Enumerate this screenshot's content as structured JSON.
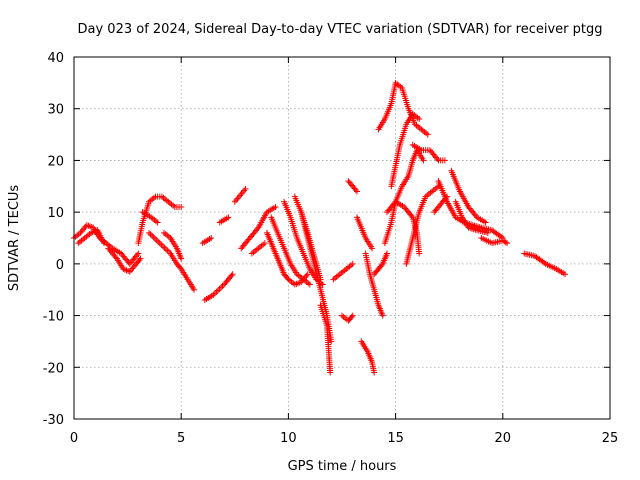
{
  "chart_data": {
    "type": "scatter",
    "title": "Day 023 of 2024, Sidereal Day-to-day VTEC variation (SDTVAR) for receiver ptgg",
    "xlabel": "GPS time / hours",
    "ylabel": "SDTVAR / TECUs",
    "xlim": [
      0,
      25
    ],
    "ylim": [
      -30,
      40
    ],
    "xticks": [
      0,
      5,
      10,
      15,
      20,
      25
    ],
    "yticks": [
      -30,
      -20,
      -10,
      0,
      10,
      20,
      30,
      40
    ],
    "xtick_labels": [
      "0",
      "5",
      "10",
      "15",
      "20",
      "25"
    ],
    "ytick_labels": [
      "-30",
      "-20",
      "-10",
      "0",
      "10",
      "20",
      "30",
      "40"
    ],
    "grid": true,
    "marker": "plus",
    "series": [
      {
        "name": "SDTVAR",
        "color": "#ff0000",
        "traces": [
          [
            [
              0.0,
              5
            ],
            [
              0.3,
              6
            ],
            [
              0.6,
              7.5
            ],
            [
              0.9,
              7
            ],
            [
              1.2,
              5
            ],
            [
              1.5,
              4
            ],
            [
              1.8,
              3
            ],
            [
              2.2,
              2
            ],
            [
              2.6,
              0
            ],
            [
              3.0,
              2
            ]
          ],
          [
            [
              0.2,
              4
            ],
            [
              0.5,
              5
            ],
            [
              0.8,
              6
            ],
            [
              1.1,
              6.5
            ],
            [
              1.4,
              4
            ]
          ],
          [
            [
              1.6,
              3
            ],
            [
              2.0,
              1
            ],
            [
              2.3,
              -1
            ],
            [
              2.6,
              -1.5
            ],
            [
              2.9,
              0
            ],
            [
              3.1,
              1
            ]
          ],
          [
            [
              3.0,
              4
            ],
            [
              3.2,
              8
            ],
            [
              3.5,
              12
            ],
            [
              3.8,
              13
            ],
            [
              4.1,
              13
            ],
            [
              4.4,
              12
            ],
            [
              4.7,
              11
            ],
            [
              5.0,
              11
            ]
          ],
          [
            [
              3.2,
              10
            ],
            [
              3.6,
              9
            ],
            [
              3.9,
              8
            ]
          ],
          [
            [
              3.5,
              6
            ],
            [
              4.0,
              4
            ],
            [
              4.5,
              2
            ],
            [
              4.8,
              0
            ],
            [
              5.0,
              -1
            ],
            [
              5.3,
              -3
            ],
            [
              5.6,
              -5
            ]
          ],
          [
            [
              4.2,
              6
            ],
            [
              4.5,
              5
            ],
            [
              4.8,
              3
            ],
            [
              5.0,
              1
            ]
          ],
          [
            [
              6.1,
              -7
            ],
            [
              6.5,
              -6
            ],
            [
              7.0,
              -4
            ],
            [
              7.4,
              -2
            ]
          ],
          [
            [
              6.0,
              4
            ],
            [
              6.4,
              5
            ]
          ],
          [
            [
              6.8,
              8
            ],
            [
              7.2,
              9
            ]
          ],
          [
            [
              7.5,
              12
            ],
            [
              8.0,
              14.5
            ]
          ],
          [
            [
              7.8,
              3
            ],
            [
              8.2,
              5
            ],
            [
              8.6,
              7
            ],
            [
              9.0,
              10
            ],
            [
              9.4,
              11
            ]
          ],
          [
            [
              8.3,
              2
            ],
            [
              8.6,
              3
            ],
            [
              8.9,
              4
            ]
          ],
          [
            [
              9.0,
              6
            ],
            [
              9.2,
              4
            ],
            [
              9.4,
              2
            ],
            [
              9.6,
              0
            ],
            [
              9.8,
              -2
            ],
            [
              10.0,
              -3
            ],
            [
              10.3,
              -4
            ],
            [
              10.6,
              -3.5
            ],
            [
              10.9,
              -2
            ]
          ],
          [
            [
              9.2,
              9
            ],
            [
              9.5,
              6
            ],
            [
              9.8,
              3
            ],
            [
              10.1,
              0
            ],
            [
              10.4,
              -2
            ],
            [
              10.7,
              -3
            ],
            [
              11.0,
              -4
            ]
          ],
          [
            [
              9.8,
              12
            ],
            [
              10.1,
              9
            ],
            [
              10.4,
              5
            ],
            [
              10.7,
              2
            ],
            [
              11.0,
              -1
            ],
            [
              11.3,
              -3
            ],
            [
              11.6,
              -4
            ]
          ],
          [
            [
              10.3,
              13
            ],
            [
              10.6,
              10
            ],
            [
              10.9,
              5
            ],
            [
              11.2,
              0
            ],
            [
              11.5,
              -5
            ],
            [
              11.8,
              -10
            ],
            [
              12.0,
              -15
            ]
          ],
          [
            [
              10.6,
              10
            ],
            [
              10.9,
              6
            ],
            [
              11.1,
              3
            ],
            [
              11.3,
              0
            ],
            [
              11.5,
              -3
            ]
          ],
          [
            [
              11.5,
              -8
            ],
            [
              11.8,
              -12
            ],
            [
              11.9,
              -18
            ],
            [
              11.95,
              -21
            ]
          ],
          [
            [
              12.1,
              -3
            ],
            [
              12.4,
              -2
            ],
            [
              12.7,
              -1
            ],
            [
              13.0,
              0
            ]
          ],
          [
            [
              12.5,
              -10
            ],
            [
              12.8,
              -11
            ],
            [
              13.0,
              -10
            ]
          ],
          [
            [
              12.8,
              16
            ],
            [
              13.2,
              14
            ]
          ],
          [
            [
              13.2,
              9
            ],
            [
              13.6,
              5
            ],
            [
              13.9,
              3
            ]
          ],
          [
            [
              13.4,
              -15
            ],
            [
              13.7,
              -17
            ],
            [
              13.9,
              -19
            ],
            [
              14.0,
              -21
            ]
          ],
          [
            [
              13.6,
              2
            ],
            [
              13.8,
              -2
            ],
            [
              14.0,
              -5
            ],
            [
              14.2,
              -8
            ],
            [
              14.4,
              -10
            ]
          ],
          [
            [
              14.0,
              -2
            ],
            [
              14.2,
              -1
            ],
            [
              14.4,
              0
            ],
            [
              14.6,
              2
            ]
          ],
          [
            [
              14.2,
              26
            ],
            [
              14.5,
              28
            ],
            [
              14.8,
              31
            ],
            [
              15.0,
              35
            ],
            [
              15.3,
              34
            ],
            [
              15.6,
              30
            ],
            [
              15.9,
              27
            ],
            [
              16.2,
              26
            ],
            [
              16.5,
              25
            ]
          ],
          [
            [
              14.5,
              4
            ],
            [
              14.8,
              8
            ],
            [
              15.0,
              12
            ],
            [
              15.3,
              15
            ],
            [
              15.6,
              17
            ],
            [
              15.8,
              20
            ],
            [
              16.0,
              22
            ],
            [
              16.3,
              20
            ]
          ],
          [
            [
              14.6,
              10
            ],
            [
              15.0,
              12
            ],
            [
              15.4,
              11
            ],
            [
              15.8,
              9
            ],
            [
              16.0,
              6
            ],
            [
              16.1,
              2
            ]
          ],
          [
            [
              14.8,
              15
            ],
            [
              15.0,
              19
            ],
            [
              15.2,
              23
            ],
            [
              15.5,
              27
            ],
            [
              15.8,
              29
            ],
            [
              16.1,
              28
            ]
          ],
          [
            [
              15.5,
              0
            ],
            [
              15.8,
              5
            ],
            [
              16.1,
              10
            ],
            [
              16.4,
              13
            ],
            [
              16.7,
              14
            ],
            [
              17.0,
              15
            ]
          ],
          [
            [
              15.8,
              23
            ],
            [
              16.2,
              22
            ],
            [
              16.6,
              22
            ],
            [
              17.0,
              20
            ],
            [
              17.3,
              20
            ]
          ],
          [
            [
              16.8,
              10
            ],
            [
              17.2,
              12
            ],
            [
              17.4,
              13
            ]
          ],
          [
            [
              17.0,
              16
            ],
            [
              17.4,
              12
            ],
            [
              17.8,
              9
            ],
            [
              18.2,
              8
            ],
            [
              18.6,
              7.5
            ],
            [
              19.0,
              7
            ],
            [
              19.5,
              6.5
            ],
            [
              20.0,
              5
            ]
          ],
          [
            [
              17.6,
              18
            ],
            [
              18.0,
              14
            ],
            [
              18.4,
              11
            ],
            [
              18.8,
              9
            ],
            [
              19.2,
              8
            ]
          ],
          [
            [
              17.8,
              12
            ],
            [
              18.1,
              9
            ],
            [
              18.4,
              7
            ],
            [
              18.8,
              6.5
            ],
            [
              19.3,
              6
            ]
          ],
          [
            [
              19.0,
              5
            ],
            [
              19.5,
              4
            ],
            [
              20.0,
              4.5
            ],
            [
              20.2,
              4
            ]
          ],
          [
            [
              21.0,
              2
            ],
            [
              21.5,
              1.5
            ],
            [
              22.0,
              0
            ],
            [
              22.5,
              -1
            ],
            [
              22.9,
              -2
            ]
          ]
        ]
      }
    ]
  }
}
